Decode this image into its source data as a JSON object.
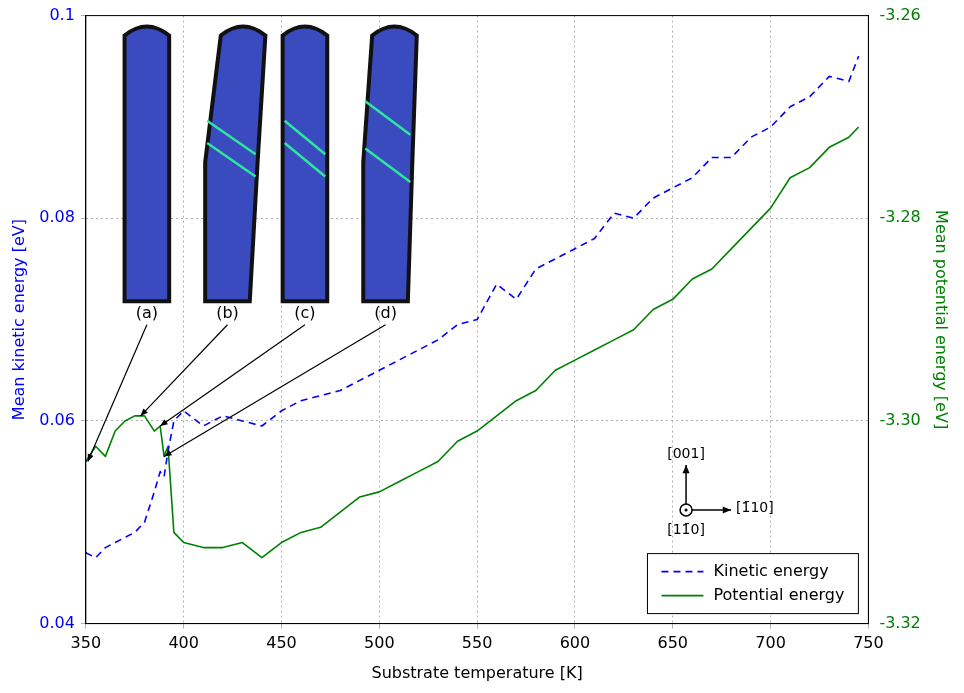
{
  "chart_data": {
    "type": "line",
    "x_label": "Substrate temperature [K]",
    "y_label": "Mean kinetic energy [eV]",
    "y2_label": "Mean potential energy [eV]",
    "x": [
      350,
      355,
      360,
      365,
      370,
      375,
      380,
      385,
      388,
      390,
      392,
      395,
      400,
      410,
      420,
      430,
      440,
      450,
      460,
      470,
      480,
      490,
      500,
      510,
      520,
      530,
      540,
      550,
      560,
      570,
      580,
      590,
      600,
      610,
      620,
      630,
      640,
      650,
      660,
      670,
      680,
      690,
      700,
      710,
      720,
      730,
      740,
      745
    ],
    "series": [
      {
        "name": "Kinetic energy",
        "color": "#0000ff",
        "line_style": "dashed",
        "axis": "y",
        "values": [
          0.047,
          0.0465,
          0.0475,
          0.048,
          0.0485,
          0.049,
          0.05,
          0.053,
          0.055,
          0.0545,
          0.057,
          0.06,
          0.061,
          0.0595,
          0.0605,
          0.06,
          0.0595,
          0.061,
          0.062,
          0.0625,
          0.063,
          0.064,
          0.065,
          0.066,
          0.067,
          0.068,
          0.0695,
          0.07,
          0.0735,
          0.072,
          0.075,
          0.076,
          0.077,
          0.078,
          0.0805,
          0.08,
          0.082,
          0.083,
          0.084,
          0.086,
          0.086,
          0.088,
          0.089,
          0.091,
          0.092,
          0.094,
          0.0935,
          0.096
        ]
      },
      {
        "name": "Potential energy",
        "color": "#008000",
        "line_style": "solid",
        "axis": "y2",
        "values": [
          -3.304,
          -3.3025,
          -3.3035,
          -3.301,
          -3.3,
          -3.2995,
          -3.2995,
          -3.301,
          -3.3005,
          -3.3035,
          -3.3025,
          -3.311,
          -3.312,
          -3.3125,
          -3.3125,
          -3.312,
          -3.3135,
          -3.312,
          -3.311,
          -3.3105,
          -3.309,
          -3.3075,
          -3.307,
          -3.306,
          -3.305,
          -3.304,
          -3.302,
          -3.301,
          -3.2995,
          -3.298,
          -3.297,
          -3.295,
          -3.294,
          -3.293,
          -3.292,
          -3.291,
          -3.289,
          -3.288,
          -3.286,
          -3.285,
          -3.283,
          -3.281,
          -3.279,
          -3.276,
          -3.275,
          -3.273,
          -3.272,
          -3.271
        ]
      }
    ],
    "xlim": [
      350,
      750
    ],
    "xticks": [
      350,
      400,
      450,
      500,
      550,
      600,
      650,
      700,
      750
    ],
    "ylim": [
      0.04,
      0.1
    ],
    "yticks": [
      0.04,
      0.06,
      0.08,
      0.1
    ],
    "y2lim": [
      -3.32,
      -3.26
    ],
    "y2ticks": [
      {
        "value": -3.32,
        "label": "-3.32"
      },
      {
        "value": -3.3,
        "label": "-3.30"
      },
      {
        "value": -3.28,
        "label": "-3.28"
      },
      {
        "value": -3.26,
        "label": "-3.26"
      }
    ],
    "grid": true,
    "legend": "lower right",
    "annotations": [
      {
        "text": "(a)",
        "x": 351,
        "y": -3.304,
        "axis": "y2"
      },
      {
        "text": "(b)",
        "x": 378,
        "y": -3.2995,
        "axis": "y2"
      },
      {
        "text": "(c)",
        "x": 388,
        "y": -3.3005,
        "axis": "y2"
      },
      {
        "text": "(d)",
        "x": 390,
        "y": -3.3035,
        "axis": "y2"
      }
    ],
    "direction_labels": [
      "[001]",
      "[1̄10]",
      "[11̄0]"
    ]
  }
}
